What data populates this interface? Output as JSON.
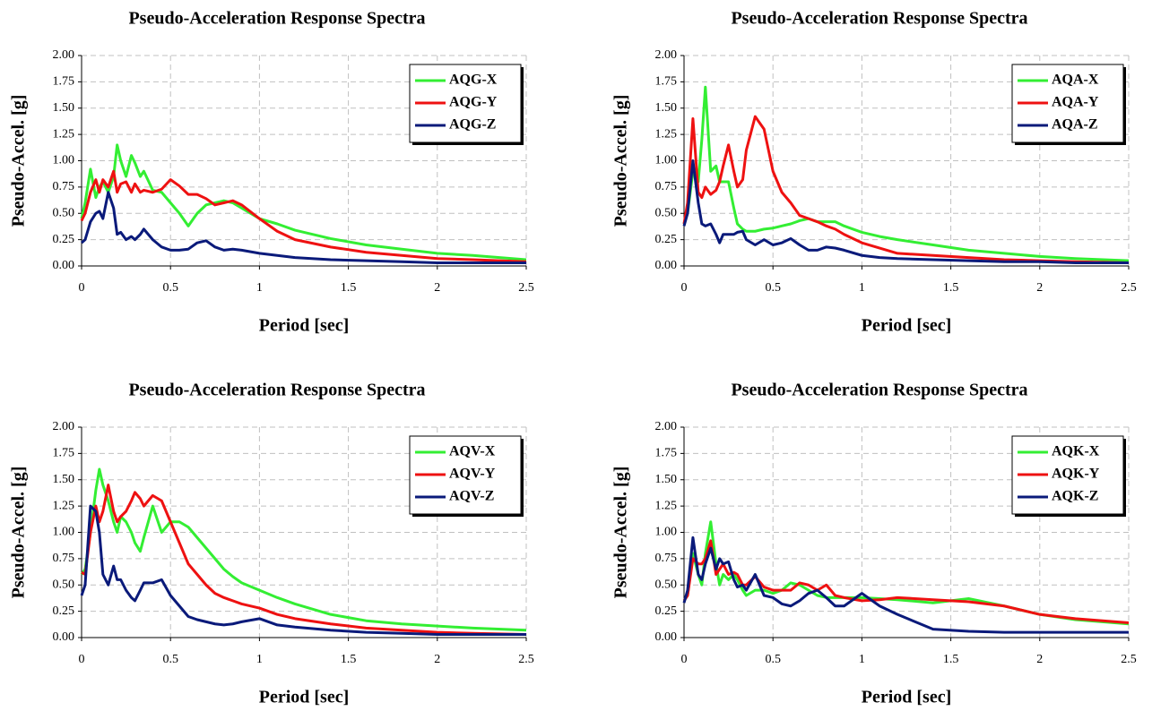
{
  "chart_data": [
    {
      "type": "line",
      "title": "Pseudo-Acceleration Response Spectra",
      "x_label": "Period [sec]",
      "y_label": "Pseudo-Accel. [g]",
      "x": [
        0,
        0.02,
        0.05,
        0.08,
        0.1,
        0.12,
        0.15,
        0.18,
        0.2,
        0.22,
        0.25,
        0.28,
        0.3,
        0.33,
        0.35,
        0.4,
        0.45,
        0.5,
        0.55,
        0.6,
        0.65,
        0.7,
        0.75,
        0.8,
        0.85,
        0.9,
        1.0,
        1.1,
        1.2,
        1.4,
        1.6,
        1.8,
        2.0,
        2.2,
        2.5
      ],
      "series": [
        {
          "name": "AQG-X",
          "color": "#33ee33",
          "values": [
            0.45,
            0.6,
            0.92,
            0.65,
            0.75,
            0.8,
            0.7,
            0.85,
            1.15,
            1.0,
            0.85,
            1.05,
            0.98,
            0.85,
            0.9,
            0.72,
            0.7,
            0.6,
            0.5,
            0.38,
            0.5,
            0.58,
            0.6,
            0.62,
            0.6,
            0.55,
            0.45,
            0.4,
            0.34,
            0.26,
            0.2,
            0.16,
            0.12,
            0.1,
            0.06
          ]
        },
        {
          "name": "AQG-Y",
          "color": "#ee1111",
          "values": [
            0.43,
            0.5,
            0.7,
            0.82,
            0.7,
            0.82,
            0.75,
            0.9,
            0.7,
            0.78,
            0.8,
            0.7,
            0.78,
            0.7,
            0.72,
            0.7,
            0.73,
            0.82,
            0.76,
            0.68,
            0.68,
            0.64,
            0.58,
            0.6,
            0.62,
            0.58,
            0.45,
            0.33,
            0.25,
            0.18,
            0.13,
            0.1,
            0.07,
            0.06,
            0.04
          ]
        },
        {
          "name": "AQG-Z",
          "color": "#0a1a7a",
          "values": [
            0.22,
            0.25,
            0.42,
            0.5,
            0.52,
            0.45,
            0.7,
            0.55,
            0.3,
            0.32,
            0.25,
            0.28,
            0.25,
            0.3,
            0.35,
            0.25,
            0.18,
            0.15,
            0.15,
            0.16,
            0.22,
            0.24,
            0.18,
            0.15,
            0.16,
            0.15,
            0.12,
            0.1,
            0.08,
            0.06,
            0.05,
            0.04,
            0.03,
            0.03,
            0.03
          ]
        }
      ],
      "xlim": [
        0,
        2.5
      ],
      "ylim": [
        0,
        2
      ],
      "xticks": [
        0,
        0.5,
        1,
        1.5,
        2,
        2.5
      ],
      "yticks": [
        {
          "value": 0,
          "label": "0.00"
        },
        {
          "value": 0.25,
          "label": "0.25"
        },
        {
          "value": 0.5,
          "label": "0.50"
        },
        {
          "value": 0.75,
          "label": "0.75"
        },
        {
          "value": 1,
          "label": "1.00"
        },
        {
          "value": 1.25,
          "label": "1.25"
        },
        {
          "value": 1.5,
          "label": "1.50"
        },
        {
          "value": 1.75,
          "label": "1.75"
        },
        {
          "value": 2,
          "label": "2.00"
        }
      ],
      "grid": true,
      "legend": "upper right"
    },
    {
      "type": "line",
      "title": "Pseudo-Acceleration Response Spectra",
      "x_label": "Period [sec]",
      "y_label": "Pseudo-Accel. [g]",
      "x": [
        0,
        0.02,
        0.05,
        0.08,
        0.1,
        0.12,
        0.15,
        0.18,
        0.2,
        0.22,
        0.25,
        0.28,
        0.3,
        0.33,
        0.35,
        0.4,
        0.45,
        0.5,
        0.55,
        0.6,
        0.65,
        0.7,
        0.75,
        0.8,
        0.85,
        0.9,
        1.0,
        1.1,
        1.2,
        1.4,
        1.6,
        1.8,
        2.0,
        2.2,
        2.5
      ],
      "series": [
        {
          "name": "AQA-X",
          "color": "#33ee33",
          "values": [
            0.4,
            0.5,
            0.9,
            0.8,
            1.2,
            1.7,
            0.9,
            0.95,
            0.8,
            0.8,
            0.8,
            0.55,
            0.4,
            0.35,
            0.33,
            0.33,
            0.35,
            0.36,
            0.38,
            0.4,
            0.43,
            0.45,
            0.42,
            0.42,
            0.42,
            0.38,
            0.32,
            0.28,
            0.25,
            0.2,
            0.15,
            0.12,
            0.09,
            0.07,
            0.05
          ]
        },
        {
          "name": "AQA-Y",
          "color": "#ee1111",
          "values": [
            0.4,
            0.6,
            1.4,
            0.7,
            0.65,
            0.75,
            0.68,
            0.72,
            0.8,
            0.95,
            1.15,
            0.9,
            0.75,
            0.82,
            1.1,
            1.42,
            1.3,
            0.9,
            0.7,
            0.6,
            0.48,
            0.45,
            0.42,
            0.38,
            0.35,
            0.3,
            0.22,
            0.17,
            0.12,
            0.1,
            0.08,
            0.06,
            0.05,
            0.04,
            0.03
          ]
        },
        {
          "name": "AQA-Z",
          "color": "#0a1a7a",
          "values": [
            0.38,
            0.5,
            1.0,
            0.6,
            0.4,
            0.38,
            0.4,
            0.3,
            0.22,
            0.3,
            0.3,
            0.3,
            0.32,
            0.33,
            0.25,
            0.2,
            0.25,
            0.2,
            0.22,
            0.26,
            0.2,
            0.15,
            0.15,
            0.18,
            0.17,
            0.15,
            0.1,
            0.08,
            0.07,
            0.06,
            0.05,
            0.04,
            0.04,
            0.03,
            0.03
          ]
        }
      ],
      "xlim": [
        0,
        2.5
      ],
      "ylim": [
        0,
        2
      ],
      "xticks": [
        0,
        0.5,
        1,
        1.5,
        2,
        2.5
      ],
      "yticks": [
        {
          "value": 0,
          "label": "0.00"
        },
        {
          "value": 0.25,
          "label": "0.25"
        },
        {
          "value": 0.5,
          "label": "0.50"
        },
        {
          "value": 0.75,
          "label": "0.75"
        },
        {
          "value": 1,
          "label": "1.00"
        },
        {
          "value": 1.25,
          "label": "1.25"
        },
        {
          "value": 1.5,
          "label": "1.50"
        },
        {
          "value": 1.75,
          "label": "1.75"
        },
        {
          "value": 2,
          "label": "2.00"
        }
      ],
      "grid": true,
      "legend": "upper right"
    },
    {
      "type": "line",
      "title": "Pseudo-Acceleration Response Spectra",
      "x_label": "Period [sec]",
      "y_label": "Pseudo-Accel. [g]",
      "x": [
        0,
        0.02,
        0.05,
        0.08,
        0.1,
        0.12,
        0.15,
        0.18,
        0.2,
        0.22,
        0.25,
        0.28,
        0.3,
        0.33,
        0.35,
        0.4,
        0.45,
        0.5,
        0.55,
        0.6,
        0.65,
        0.7,
        0.75,
        0.8,
        0.85,
        0.9,
        1.0,
        1.1,
        1.2,
        1.4,
        1.6,
        1.8,
        2.0,
        2.2,
        2.5
      ],
      "series": [
        {
          "name": "AQV-X",
          "color": "#33ee33",
          "values": [
            0.6,
            0.65,
            1.0,
            1.4,
            1.6,
            1.45,
            1.3,
            1.1,
            1.0,
            1.15,
            1.1,
            1.0,
            0.9,
            0.82,
            0.95,
            1.25,
            1.0,
            1.1,
            1.1,
            1.05,
            0.95,
            0.85,
            0.75,
            0.65,
            0.58,
            0.52,
            0.45,
            0.38,
            0.32,
            0.22,
            0.16,
            0.13,
            0.11,
            0.09,
            0.07
          ]
        },
        {
          "name": "AQV-Y",
          "color": "#ee1111",
          "values": [
            0.62,
            0.6,
            1.0,
            1.25,
            1.1,
            1.2,
            1.45,
            1.2,
            1.1,
            1.15,
            1.2,
            1.3,
            1.38,
            1.32,
            1.25,
            1.35,
            1.3,
            1.1,
            0.9,
            0.7,
            0.6,
            0.5,
            0.42,
            0.38,
            0.35,
            0.32,
            0.28,
            0.22,
            0.18,
            0.13,
            0.09,
            0.07,
            0.05,
            0.04,
            0.03
          ]
        },
        {
          "name": "AQV-Z",
          "color": "#0a1a7a",
          "values": [
            0.4,
            0.5,
            1.25,
            1.2,
            1.0,
            0.6,
            0.5,
            0.68,
            0.55,
            0.55,
            0.45,
            0.38,
            0.35,
            0.45,
            0.52,
            0.52,
            0.55,
            0.4,
            0.3,
            0.2,
            0.17,
            0.15,
            0.13,
            0.12,
            0.13,
            0.15,
            0.18,
            0.12,
            0.1,
            0.07,
            0.05,
            0.04,
            0.03,
            0.03,
            0.03
          ]
        }
      ],
      "xlim": [
        0,
        2.5
      ],
      "ylim": [
        0,
        2
      ],
      "xticks": [
        0,
        0.5,
        1,
        1.5,
        2,
        2.5
      ],
      "yticks": [
        {
          "value": 0,
          "label": "0.00"
        },
        {
          "value": 0.25,
          "label": "0.25"
        },
        {
          "value": 0.5,
          "label": "0.50"
        },
        {
          "value": 0.75,
          "label": "0.75"
        },
        {
          "value": 1,
          "label": "1.00"
        },
        {
          "value": 1.25,
          "label": "1.25"
        },
        {
          "value": 1.5,
          "label": "1.50"
        },
        {
          "value": 1.75,
          "label": "1.75"
        },
        {
          "value": 2,
          "label": "2.00"
        }
      ],
      "grid": true,
      "legend": "upper right"
    },
    {
      "type": "line",
      "title": "Pseudo-Acceleration Response Spectra",
      "x_label": "Period [sec]",
      "y_label": "Pseudo-Accel. [g]",
      "x": [
        0,
        0.02,
        0.05,
        0.08,
        0.1,
        0.12,
        0.15,
        0.18,
        0.2,
        0.22,
        0.25,
        0.28,
        0.3,
        0.33,
        0.35,
        0.4,
        0.45,
        0.5,
        0.55,
        0.6,
        0.65,
        0.7,
        0.75,
        0.8,
        0.85,
        0.9,
        1.0,
        1.1,
        1.2,
        1.4,
        1.6,
        1.8,
        2.0,
        2.2,
        2.5
      ],
      "series": [
        {
          "name": "AQK-X",
          "color": "#33ee33",
          "values": [
            0.35,
            0.4,
            0.8,
            0.6,
            0.5,
            0.8,
            1.1,
            0.7,
            0.5,
            0.6,
            0.55,
            0.6,
            0.55,
            0.45,
            0.4,
            0.45,
            0.45,
            0.42,
            0.45,
            0.52,
            0.5,
            0.45,
            0.4,
            0.38,
            0.38,
            0.38,
            0.38,
            0.37,
            0.36,
            0.33,
            0.37,
            0.3,
            0.22,
            0.17,
            0.13
          ]
        },
        {
          "name": "AQK-Y",
          "color": "#ee1111",
          "values": [
            0.35,
            0.4,
            0.75,
            0.7,
            0.7,
            0.75,
            0.92,
            0.6,
            0.65,
            0.7,
            0.6,
            0.62,
            0.6,
            0.5,
            0.5,
            0.58,
            0.48,
            0.45,
            0.45,
            0.45,
            0.52,
            0.5,
            0.45,
            0.5,
            0.4,
            0.38,
            0.35,
            0.36,
            0.38,
            0.36,
            0.34,
            0.3,
            0.22,
            0.18,
            0.14
          ]
        },
        {
          "name": "AQK-Z",
          "color": "#0a1a7a",
          "values": [
            0.33,
            0.45,
            0.95,
            0.6,
            0.55,
            0.7,
            0.85,
            0.65,
            0.75,
            0.7,
            0.72,
            0.55,
            0.48,
            0.5,
            0.45,
            0.6,
            0.4,
            0.38,
            0.32,
            0.3,
            0.35,
            0.42,
            0.45,
            0.38,
            0.3,
            0.3,
            0.42,
            0.3,
            0.22,
            0.08,
            0.06,
            0.05,
            0.05,
            0.05,
            0.05
          ]
        }
      ],
      "xlim": [
        0,
        2.5
      ],
      "ylim": [
        0,
        2
      ],
      "xticks": [
        0,
        0.5,
        1,
        1.5,
        2,
        2.5
      ],
      "yticks": [
        {
          "value": 0,
          "label": "0.00"
        },
        {
          "value": 0.25,
          "label": "0.25"
        },
        {
          "value": 0.5,
          "label": "0.50"
        },
        {
          "value": 0.75,
          "label": "0.75"
        },
        {
          "value": 1,
          "label": "1.00"
        },
        {
          "value": 1.25,
          "label": "1.25"
        },
        {
          "value": 1.5,
          "label": "1.50"
        },
        {
          "value": 1.75,
          "label": "1.75"
        },
        {
          "value": 2,
          "label": "2.00"
        }
      ],
      "grid": true,
      "legend": "upper right"
    }
  ]
}
